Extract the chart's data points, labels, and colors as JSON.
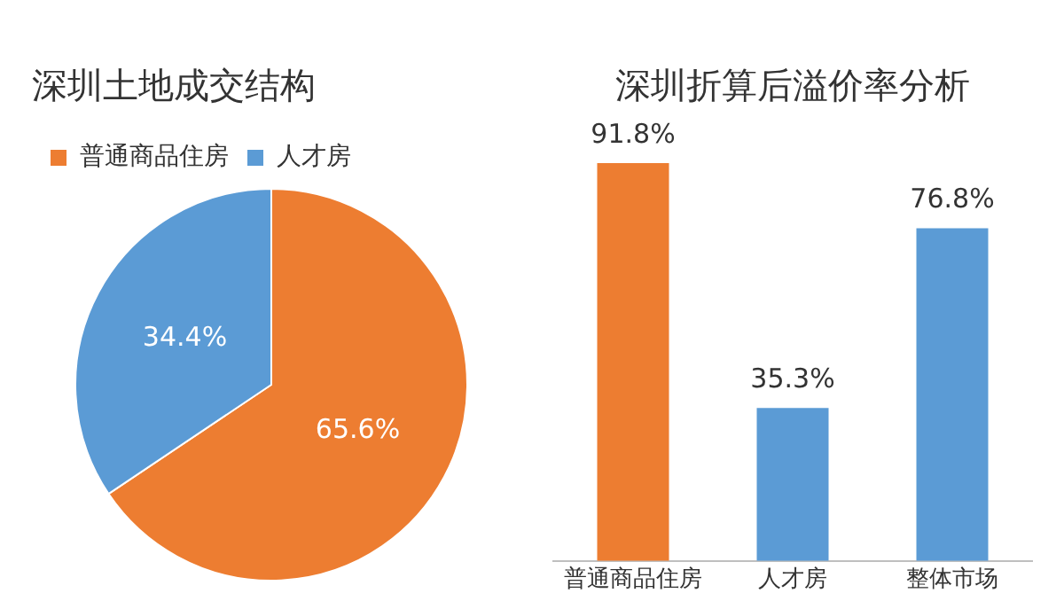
{
  "chart_data": [
    {
      "type": "pie",
      "title": "深圳土地成交结构",
      "categories": [
        "普通商品住房",
        "人才房"
      ],
      "values": [
        65.6,
        34.4
      ],
      "colors": [
        "#ed7d31",
        "#5b9bd5"
      ],
      "value_labels": [
        "65.6%",
        "34.4%"
      ],
      "legend": "top left"
    },
    {
      "type": "bar",
      "title": "深圳折算后溢价率分析",
      "categories": [
        "普通商品住房",
        "人才房",
        "整体市场"
      ],
      "values": [
        91.8,
        35.3,
        76.8
      ],
      "colors": [
        "#ed7d31",
        "#5b9bd5",
        "#5b9bd5"
      ],
      "value_labels": [
        "91.8%",
        "35.3%",
        "76.8%"
      ],
      "tick_labels": "x",
      "grid": false
    }
  ]
}
